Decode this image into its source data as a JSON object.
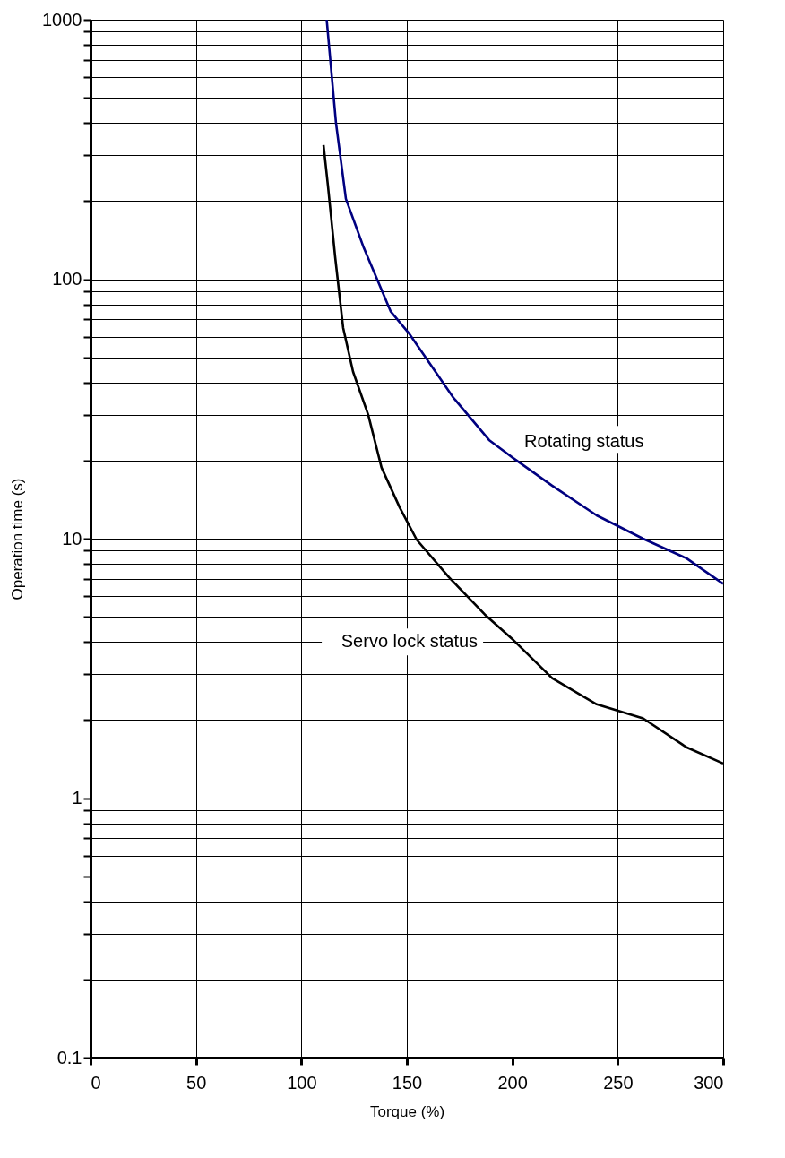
{
  "chart_data": {
    "type": "line",
    "xlabel": "Torque (%)",
    "ylabel": "Operation time (s)",
    "x": [
      112,
      116.4,
      121.1,
      129.6,
      142.4,
      150.9,
      172,
      189,
      200.6,
      218.9,
      240,
      262,
      282.6,
      300
    ],
    "series": [
      {
        "name": "Rotating status",
        "color": "#000080",
        "values": [
          1000,
          400,
          204,
          132,
          75,
          62,
          35,
          24,
          20.4,
          16,
          12.3,
          10,
          8.4,
          6.7
        ]
      },
      {
        "name": "Servo lock status",
        "color": "#000000",
        "x": [
          110.5,
          112.6,
          116,
          119.8,
          124.5,
          131.7,
          138,
          146.6,
          154.7,
          170,
          187,
          200.6,
          218.9,
          240,
          262,
          282.6,
          300
        ],
        "values": [
          329,
          229,
          122,
          65,
          44,
          30,
          18.8,
          13.2,
          9.9,
          7.1,
          5.1,
          4.06,
          2.9,
          2.3,
          2.03,
          1.57,
          1.36
        ]
      }
    ],
    "xlim": [
      0,
      300
    ],
    "xticks": [
      0,
      50,
      100,
      150,
      200,
      250,
      300
    ],
    "ylim": [
      0.1,
      1000
    ],
    "yticks": [
      0.1,
      {
        "value": 0.2,
        "label": null
      },
      {
        "value": 0.3,
        "label": null
      },
      {
        "value": 0.4,
        "label": null
      },
      {
        "value": 0.5,
        "label": null
      },
      {
        "value": 0.6,
        "label": null
      },
      {
        "value": 0.7,
        "label": null
      },
      {
        "value": 0.8,
        "label": null
      },
      {
        "value": 0.9,
        "label": null
      },
      1,
      {
        "value": 2,
        "label": null
      },
      {
        "value": 3,
        "label": null
      },
      {
        "value": 4,
        "label": null
      },
      {
        "value": 5,
        "label": null
      },
      {
        "value": 6,
        "label": null
      },
      {
        "value": 7,
        "label": null
      },
      {
        "value": 8,
        "label": null
      },
      {
        "value": 9,
        "label": null
      },
      10,
      {
        "value": 20,
        "label": null
      },
      {
        "value": 30,
        "label": null
      },
      {
        "value": 40,
        "label": null
      },
      {
        "value": 50,
        "label": null
      },
      {
        "value": 60,
        "label": null
      },
      {
        "value": 70,
        "label": null
      },
      {
        "value": 80,
        "label": null
      },
      {
        "value": 90,
        "label": null
      },
      100,
      {
        "value": 200,
        "label": null
      },
      {
        "value": 300,
        "label": null
      },
      {
        "value": 400,
        "label": null
      },
      {
        "value": 500,
        "label": null
      },
      {
        "value": 600,
        "label": null
      },
      {
        "value": 700,
        "label": null
      },
      {
        "value": 800,
        "label": null
      },
      {
        "value": 900,
        "label": null
      },
      1000
    ],
    "log": "y",
    "grid": true,
    "line_style": "solid",
    "marker": "none"
  }
}
